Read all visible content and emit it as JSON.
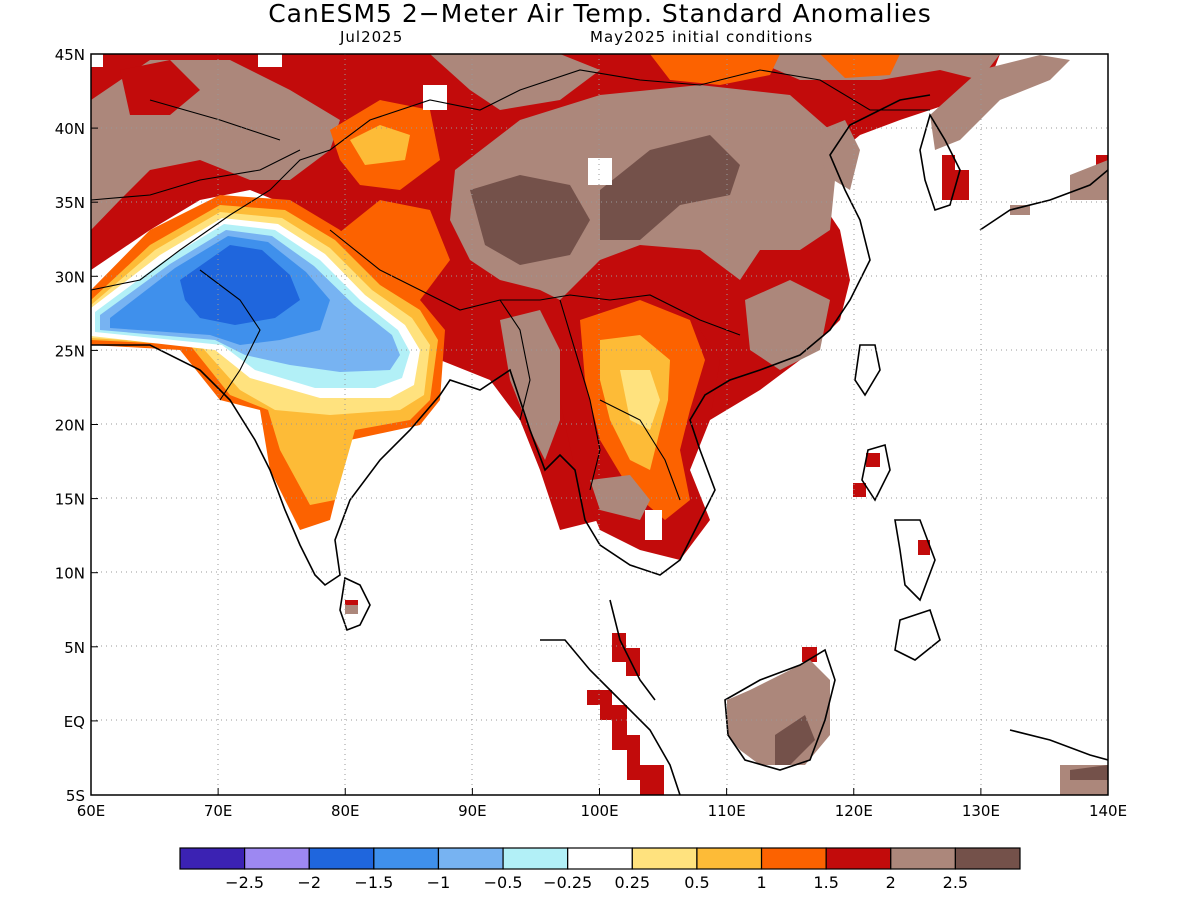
{
  "title": "CanESM5 2−Meter Air Temp. Standard Anomalies",
  "valid_month": "Jul2025",
  "init_conditions": "May2025 initial conditions",
  "map": {
    "lon_range": [
      60,
      140
    ],
    "lat_range": [
      -5,
      45
    ],
    "lon_ticks": [
      "60E",
      "70E",
      "80E",
      "90E",
      "100E",
      "110E",
      "120E",
      "130E",
      "140E"
    ],
    "lat_ticks": [
      "45N",
      "40N",
      "35N",
      "30N",
      "25N",
      "20N",
      "15N",
      "10N",
      "5N",
      "EQ",
      "5S"
    ],
    "grid": "dotted"
  },
  "colorbar": {
    "colors": [
      "#3b22b3",
      "#9d88f2",
      "#1f66dd",
      "#3f90ec",
      "#77b3f2",
      "#b2f0f7",
      "#ffffff",
      "#ffe27e",
      "#fdbb37",
      "#fc6200",
      "#c20b0b",
      "#ac877b",
      "#74514a"
    ],
    "labels": [
      "−2.5",
      "−2",
      "−1.5",
      "−1",
      "−0.5",
      "−0.25",
      "0.25",
      "0.5",
      "1",
      "1.5",
      "2",
      "2.5"
    ]
  }
}
